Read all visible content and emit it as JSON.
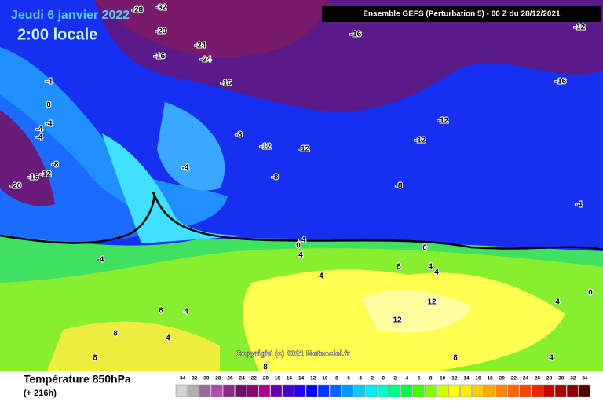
{
  "header": {
    "date": "Jeudi 6 janvier 2022",
    "time": "2:00 locale",
    "run": "Ensemble GEFS  (Perturbation 5)  -  00 Z du 28/12/2021"
  },
  "copyright": "Copyright (c) 2021 Meteociel.fr",
  "footer": {
    "title": "Température 850hPa",
    "lead": "(+ 216h)"
  },
  "map_labels": [
    "-28",
    "-32",
    "-20",
    "-24",
    "-24",
    "-16",
    "-16",
    "-12",
    "-16",
    "-16",
    "-4",
    "0",
    "-4",
    "-4",
    "-8",
    "-12",
    "-16",
    "-20",
    "-8",
    "-12",
    "-12",
    "-12",
    "-12",
    "-4",
    "-8",
    "-8",
    "-4",
    "-4",
    "0",
    "4",
    "0",
    "-4",
    "8",
    "4",
    "4",
    "4",
    "0",
    "12",
    "4",
    "8",
    "4",
    "8",
    "8",
    "12",
    "8",
    "4",
    "8",
    "-4",
    "4"
  ],
  "legend": {
    "labels": [
      -34,
      -32,
      -30,
      -28,
      -26,
      -24,
      -22,
      -20,
      -18,
      -16,
      -14,
      -12,
      -10,
      -8,
      -6,
      -4,
      -2,
      0,
      2,
      4,
      6,
      8,
      10,
      12,
      14,
      16,
      18,
      20,
      22,
      24,
      26,
      28,
      30,
      32,
      34
    ],
    "colors": [
      "#d4d4d4",
      "#b0b0b0",
      "#9a6a9a",
      "#b04ab0",
      "#8a2a8a",
      "#6a106a",
      "#8a0070",
      "#aa0090",
      "#6600aa",
      "#4400cc",
      "#2200ee",
      "#0000ff",
      "#0033ff",
      "#0066ff",
      "#0099ff",
      "#00ccff",
      "#00eeff",
      "#00ffcc",
      "#00ff88",
      "#00ff44",
      "#44ff00",
      "#88ff00",
      "#ccff00",
      "#ffff00",
      "#ffee00",
      "#ffcc00",
      "#ffaa00",
      "#ff8800",
      "#ff6600",
      "#ff4400",
      "#ee2200",
      "#cc0000",
      "#aa0000",
      "#880000",
      "#550000"
    ]
  }
}
